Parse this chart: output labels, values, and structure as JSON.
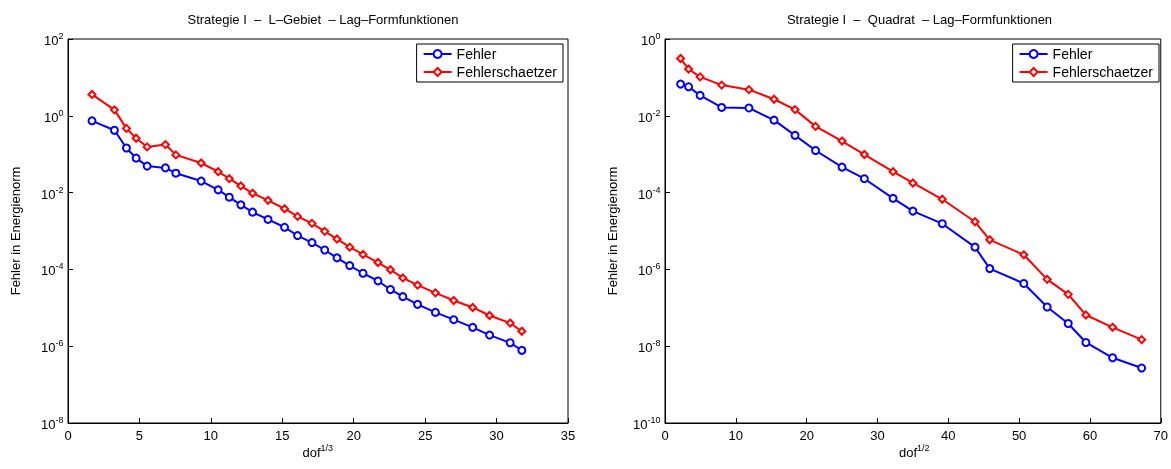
{
  "chart_data": [
    {
      "type": "line",
      "title": "Strategie I  –  L–Gebiet  – Lag–Formfunktionen",
      "xlabel": "dof$^{1/3}$",
      "ylabel": "Fehler in Energienorm",
      "log": "y",
      "legend": "top right",
      "x": [
        1.68,
        3.25,
        4.09,
        4.77,
        5.54,
        6.82,
        7.55,
        9.32,
        10.51,
        11.29,
        12.1,
        12.92,
        14.0,
        15.16,
        16.07,
        17.08,
        17.97,
        18.83,
        19.72,
        20.65,
        21.7,
        22.57,
        23.44,
        24.47,
        25.72,
        27.0,
        28.33,
        29.51,
        30.95,
        31.77
      ],
      "xlim": [
        0,
        35
      ],
      "xticks": [
        0,
        5,
        10,
        15,
        20,
        25,
        30,
        35
      ],
      "ylim": [
        1e-08,
        100
      ],
      "yticks": [
        {
          "value": 1e-08,
          "label": "10$^{-8}$"
        },
        {
          "value": 1e-06,
          "label": "10$^{-6}$"
        },
        {
          "value": 0.0001,
          "label": "10$^{-4}$"
        },
        {
          "value": 0.01,
          "label": "10$^{-2}$"
        },
        {
          "value": 1,
          "label": "10$^{0}$"
        },
        {
          "value": 100,
          "label": "10$^{2}$"
        }
      ],
      "series": [
        {
          "name": "Fehler",
          "color": "#0000ff",
          "marker": "circle",
          "values": [
            0.74,
            0.42,
            0.145,
            0.079,
            0.049,
            0.044,
            0.032,
            0.02,
            0.0118,
            0.0076,
            0.0048,
            0.0031,
            0.002,
            0.00125,
            0.00076,
            0.0005,
            0.00032,
            0.0002,
            0.000126,
            7.94e-05,
            5e-05,
            3e-05,
            1.95e-05,
            1.23e-05,
            7.6e-06,
            4.9e-06,
            3.1e-06,
            1.95e-06,
            1.23e-06,
            7.8e-07
          ]
        },
        {
          "name": "Fehlerschaetzer",
          "color": "#ff0000",
          "marker": "diamond",
          "values": [
            3.6,
            1.43,
            0.47,
            0.26,
            0.155,
            0.178,
            0.096,
            0.059,
            0.035,
            0.023,
            0.0149,
            0.0096,
            0.0063,
            0.0038,
            0.0024,
            0.00158,
            0.00098,
            0.00062,
            0.00038,
            0.000245,
            0.000151,
            9.77e-05,
            6e-05,
            3.9e-05,
            2.45e-05,
            1.55e-05,
            1.02e-05,
            6.3e-06,
            4e-06,
            2.45e-06
          ]
        }
      ]
    },
    {
      "type": "line",
      "title": "Strategie I  –  Quadrat  – Lag–Formfunktionen",
      "xlabel": "dof$^{1/2}$",
      "ylabel": "Fehler in Energienorm",
      "log": "y",
      "legend": "top right",
      "x": [
        2.2,
        3.33,
        4.96,
        8.0,
        11.85,
        15.4,
        18.36,
        21.26,
        25.0,
        28.15,
        32.2,
        35.0,
        39.15,
        43.77,
        45.85,
        50.66,
        53.96,
        56.93,
        59.43,
        63.2,
        67.3
      ],
      "xlim": [
        0,
        70
      ],
      "xticks": [
        0,
        10,
        20,
        30,
        40,
        50,
        60,
        70
      ],
      "ylim": [
        1e-10,
        1
      ],
      "yticks": [
        {
          "value": 1e-10,
          "label": "10$^{-10}$"
        },
        {
          "value": 1e-08,
          "label": "10$^{-8}$"
        },
        {
          "value": 1e-06,
          "label": "10$^{-6}$"
        },
        {
          "value": 0.0001,
          "label": "10$^{-4}$"
        },
        {
          "value": 0.01,
          "label": "10$^{-2}$"
        },
        {
          "value": 1,
          "label": "10$^{0}$"
        }
      ],
      "series": [
        {
          "name": "Fehler",
          "color": "#0000ff",
          "marker": "circle",
          "values": [
            0.067,
            0.057,
            0.034,
            0.0165,
            0.016,
            0.0077,
            0.0031,
            0.00125,
            0.00046,
            0.00023,
            7.1e-05,
            3.3e-05,
            1.55e-05,
            3.8e-06,
            1.05e-06,
            4.3e-07,
            1.05e-07,
            3.9e-08,
            1.25e-08,
            5e-09,
            2.7e-09
          ]
        },
        {
          "name": "Fehlerschaetzer",
          "color": "#ff0000",
          "marker": "diamond",
          "values": [
            0.31,
            0.165,
            0.103,
            0.063,
            0.048,
            0.027,
            0.0145,
            0.0053,
            0.0022,
            0.00098,
            0.00035,
            0.000178,
            6.7e-05,
            1.74e-05,
            5.9e-06,
            2.4e-06,
            5.5e-07,
            2.24e-07,
            6.5e-08,
            3.1e-08,
            1.48e-08
          ]
        }
      ]
    }
  ]
}
